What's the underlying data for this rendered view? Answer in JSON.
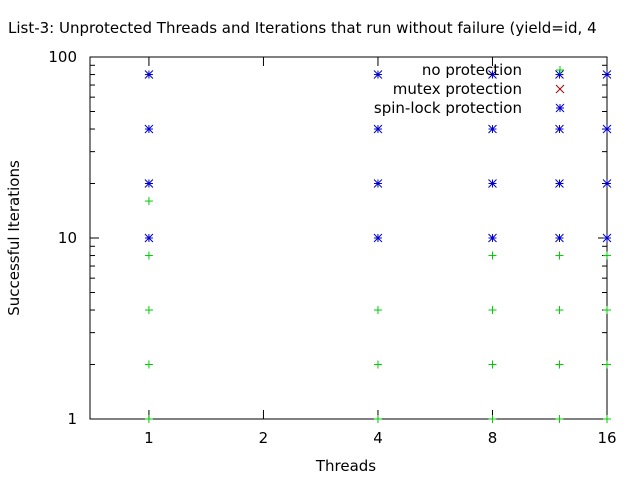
{
  "chart_data": {
    "type": "scatter",
    "title": "List-3: Unprotected Threads and Iterations that run without failure (yield=id, 4",
    "xlabel": "Threads",
    "ylabel": "Successful Iterations",
    "x_scale": "log2",
    "y_scale": "log10",
    "xlim": [
      0.7,
      16
    ],
    "ylim": [
      1,
      100
    ],
    "x_ticks": [
      1,
      2,
      4,
      8,
      16
    ],
    "y_ticks": [
      1,
      10,
      100
    ],
    "grid": false,
    "legend_position": "top-right",
    "series": [
      {
        "name": "no protection",
        "marker": "plus",
        "color": "#00cc00",
        "points": [
          [
            1,
            1
          ],
          [
            1,
            2
          ],
          [
            1,
            4
          ],
          [
            1,
            8
          ],
          [
            1,
            16
          ],
          [
            4,
            1
          ],
          [
            4,
            2
          ],
          [
            4,
            4
          ],
          [
            8,
            1
          ],
          [
            8,
            2
          ],
          [
            8,
            4
          ],
          [
            8,
            8
          ],
          [
            12,
            1
          ],
          [
            12,
            2
          ],
          [
            12,
            4
          ],
          [
            12,
            8
          ],
          [
            16,
            1
          ],
          [
            16,
            2
          ],
          [
            16,
            4
          ],
          [
            16,
            8
          ]
        ]
      },
      {
        "name": "mutex protection",
        "marker": "cross",
        "color": "#aa0000",
        "points": []
      },
      {
        "name": "spin-lock protection",
        "marker": "star",
        "color": "#0000cc",
        "points": [
          [
            1,
            10
          ],
          [
            1,
            20
          ],
          [
            1,
            40
          ],
          [
            1,
            80
          ],
          [
            4,
            10
          ],
          [
            4,
            20
          ],
          [
            4,
            40
          ],
          [
            4,
            80
          ],
          [
            8,
            10
          ],
          [
            8,
            20
          ],
          [
            8,
            40
          ],
          [
            8,
            80
          ],
          [
            12,
            10
          ],
          [
            12,
            20
          ],
          [
            12,
            40
          ],
          [
            12,
            80
          ],
          [
            16,
            10
          ],
          [
            16,
            20
          ],
          [
            16,
            40
          ],
          [
            16,
            80
          ]
        ]
      }
    ]
  }
}
